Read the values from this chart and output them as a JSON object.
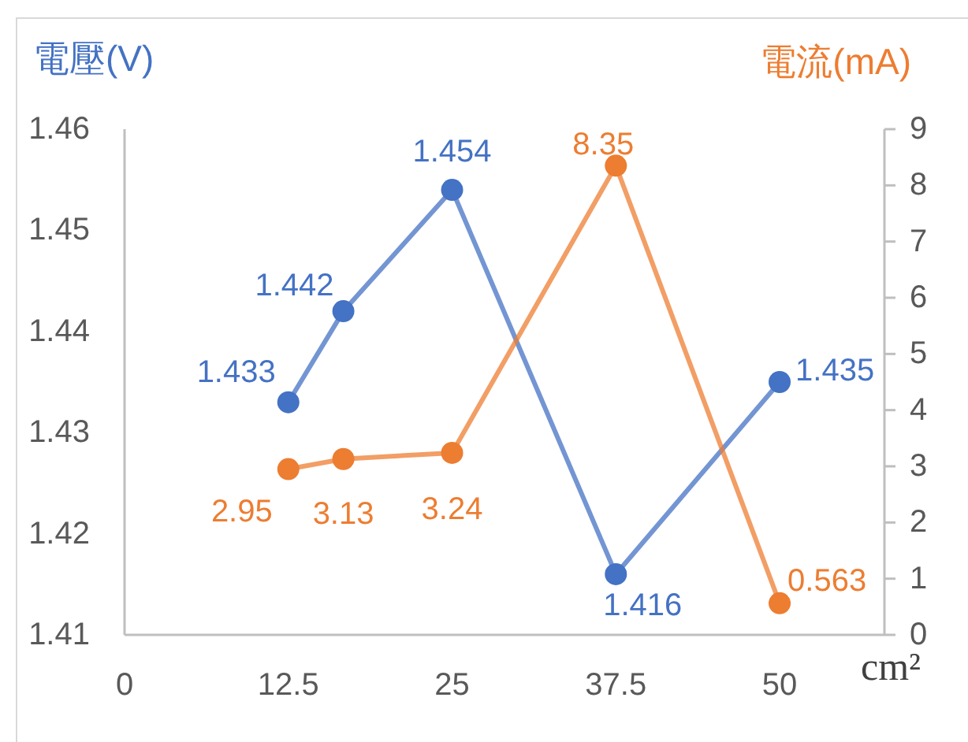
{
  "chart_data": {
    "type": "line",
    "xlabel": "cm²",
    "ylabel": "電壓(V)",
    "y2label": "電流(mA)",
    "x": [
      12.5,
      16.7,
      25,
      37.5,
      50
    ],
    "xlim": [
      0,
      58
    ],
    "xticks": [
      0,
      12.5,
      25,
      37.5,
      50
    ],
    "ylim": [
      1.41,
      1.46
    ],
    "yticks": [
      1.41,
      1.42,
      1.43,
      1.44,
      1.45,
      1.46
    ],
    "y2lim": [
      0,
      9
    ],
    "y2ticks": [
      0,
      1,
      2,
      3,
      4,
      5,
      6,
      7,
      8,
      9
    ],
    "series": [
      {
        "color": "#4472c4",
        "values": [
          1.433,
          1.442,
          1.454,
          1.416,
          1.435
        ]
      },
      {
        "color": "#ed7d31",
        "axis": "y2",
        "values": [
          2.95,
          3.13,
          3.24,
          8.35,
          0.563
        ]
      }
    ],
    "marker": "circle",
    "data_labels": true
  }
}
